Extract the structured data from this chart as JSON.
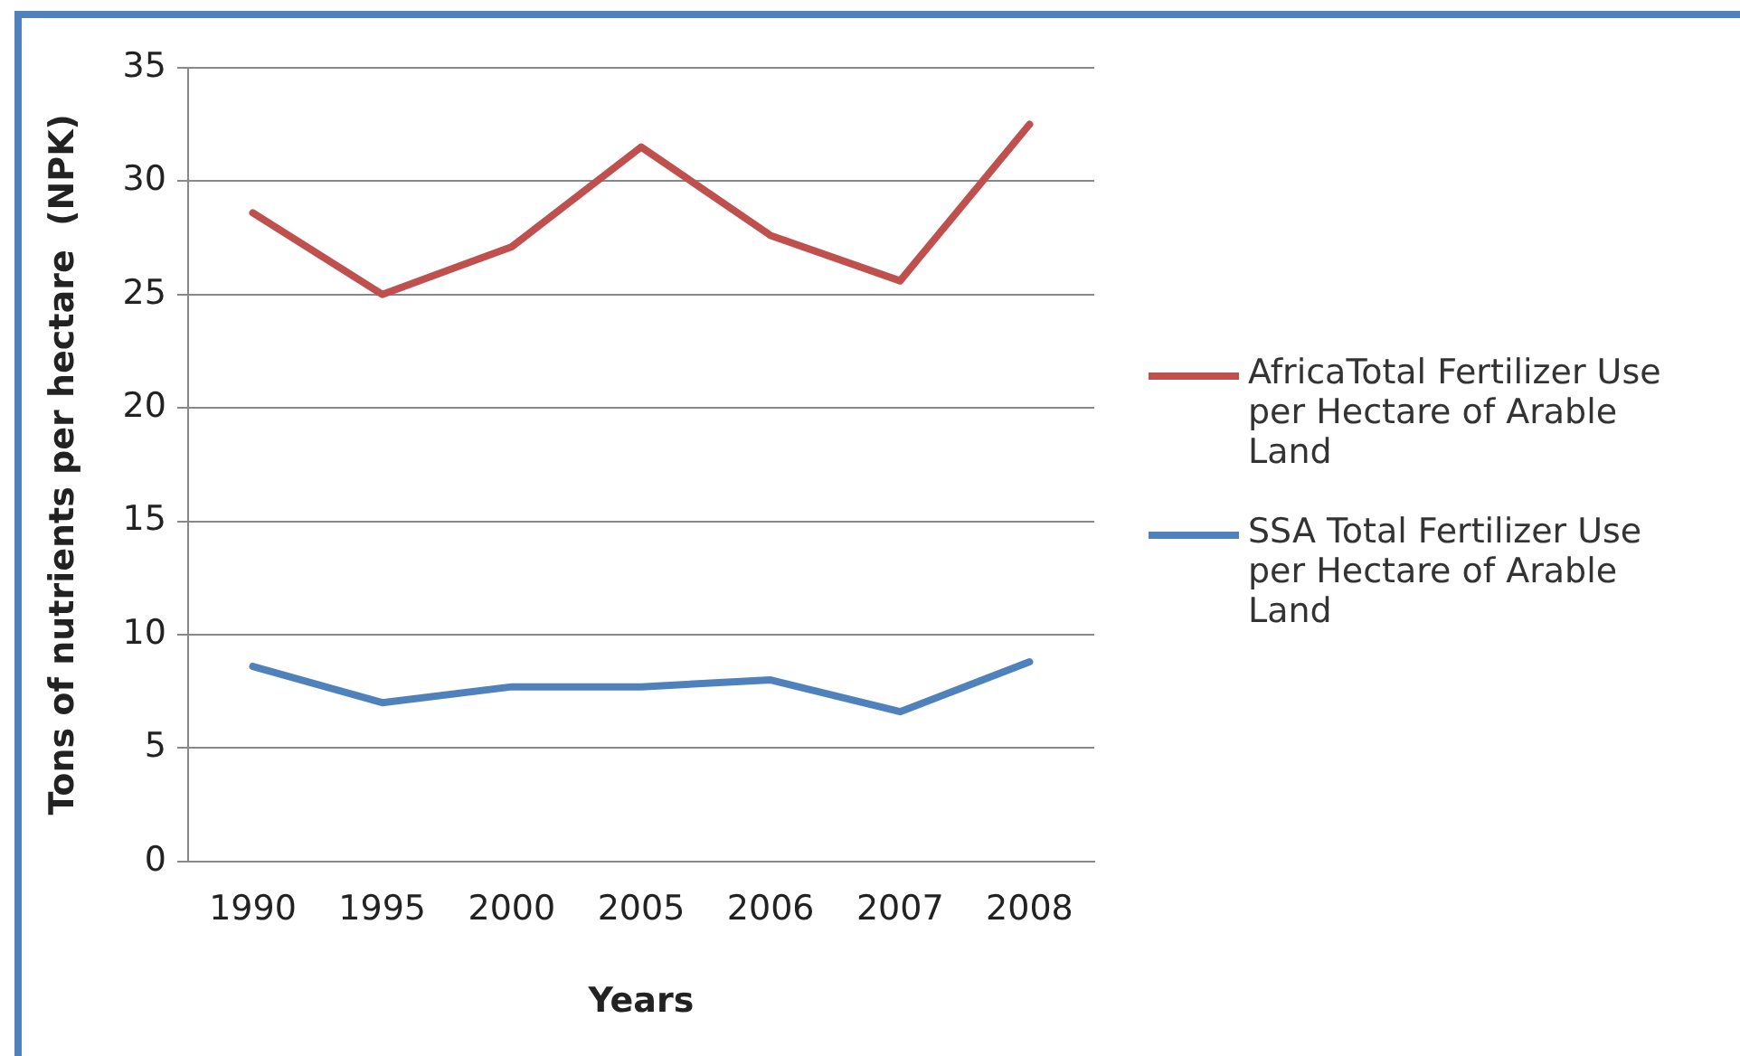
{
  "chart_data": {
    "type": "line",
    "xlabel": "Years",
    "ylabel": "Tons of nutrients per hectare  (NPK)",
    "categories": [
      "1990",
      "1995",
      "2000",
      "2005",
      "2006",
      "2007",
      "2008"
    ],
    "series": [
      {
        "name": "AfricaTotal Fertilizer Use per Hectare of Arable Land",
        "color": "#c0504d",
        "values": [
          28.6,
          25.0,
          27.1,
          31.5,
          27.6,
          25.6,
          32.5
        ]
      },
      {
        "name": "SSA Total Fertilizer Use per Hectare of Arable Land",
        "color": "#4f81bd",
        "values": [
          8.6,
          7.0,
          7.7,
          7.7,
          8.0,
          6.6,
          8.8
        ]
      }
    ],
    "ylim": [
      0,
      35
    ],
    "yticks": [
      0,
      5,
      10,
      15,
      20,
      25,
      30,
      35
    ],
    "grid": "y",
    "legend": "right",
    "marker": "none",
    "line_style": "solid"
  }
}
